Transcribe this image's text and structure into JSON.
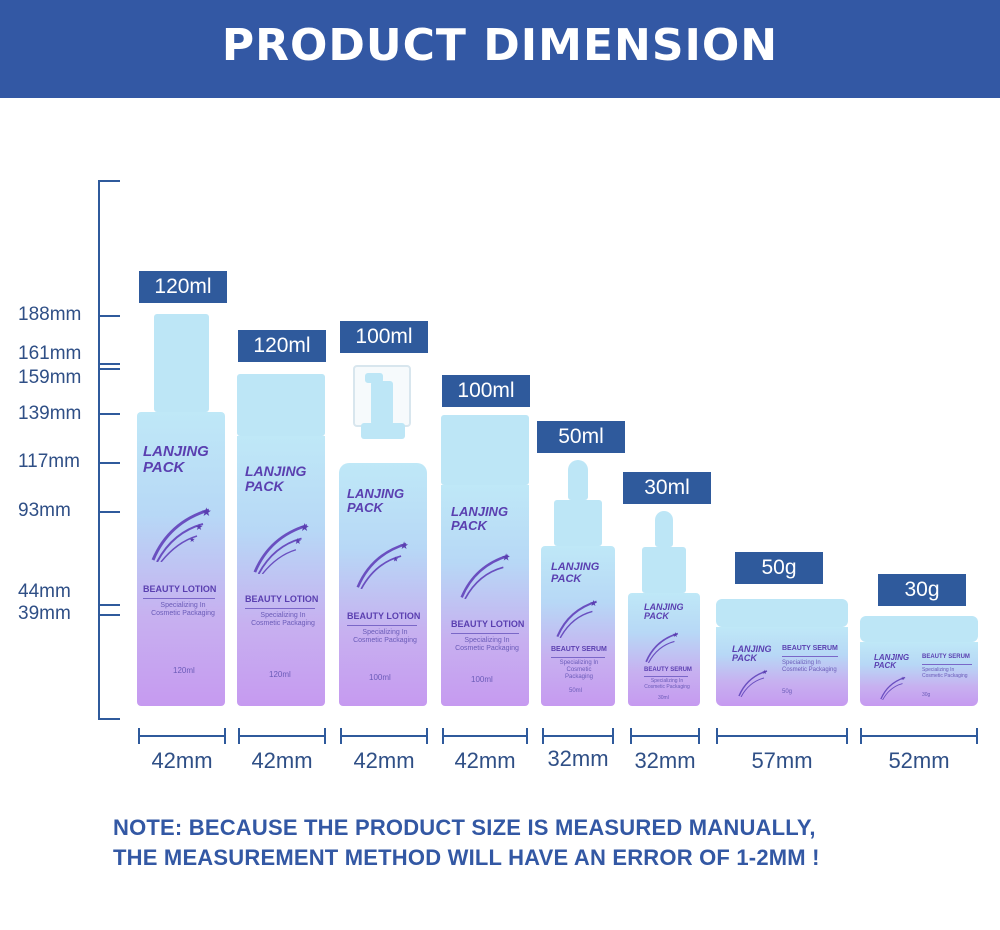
{
  "header": {
    "title": "PRODUCT DIMENSION"
  },
  "height_scale": [
    "188mm",
    "161mm",
    "159mm",
    "139mm",
    "117mm",
    "93mm",
    "44mm",
    "39mm"
  ],
  "products": [
    {
      "volume": "120ml",
      "width": "42mm",
      "brand": "LANJING PACK",
      "type": "BEAUTY LOTION",
      "sub": "Specializing In Cosmetic Packaging",
      "vol_print": "120ml"
    },
    {
      "volume": "120ml",
      "width": "42mm",
      "brand": "LANJING PACK",
      "type": "BEAUTY LOTION",
      "sub": "Specializing In Cosmetic Packaging",
      "vol_print": "120ml"
    },
    {
      "volume": "100ml",
      "width": "42mm",
      "brand": "LANJING PACK",
      "type": "BEAUTY LOTION",
      "sub": "Specializing In Cosmetic Packaging",
      "vol_print": "100ml"
    },
    {
      "volume": "100ml",
      "width": "42mm",
      "brand": "LANJING PACK",
      "type": "BEAUTY LOTION",
      "sub": "Specializing In Cosmetic Packaging",
      "vol_print": "100ml"
    },
    {
      "volume": "50ml",
      "width": "32mm",
      "brand": "LANJING PACK",
      "type": "BEAUTY SERUM",
      "sub": "Specializing In Cosmetic Packaging",
      "vol_print": "50ml"
    },
    {
      "volume": "30ml",
      "width": "32mm",
      "brand": "LANJING PACK",
      "type": "BEAUTY SERUM",
      "sub": "Specializing In Cosmetic Packaging",
      "vol_print": "30ml"
    },
    {
      "volume": "50g",
      "width": "57mm",
      "brand": "LANJING PACK",
      "type": "BEAUTY SERUM",
      "sub": "Specializing In Cosmetic Packaging",
      "vol_print": "50g"
    },
    {
      "volume": "30g",
      "width": "52mm",
      "brand": "LANJING PACK",
      "type": "BEAUTY SERUM",
      "sub": "Specializing In Cosmetic Packaging",
      "vol_print": "30g"
    }
  ],
  "note": {
    "line1": "NOTE:  BECAUSE THE PRODUCT SIZE IS MEASURED MANUALLY,",
    "line2": "THE MEASUREMENT METHOD WILL HAVE AN ERROR OF 1-2MM  !"
  },
  "colors": {
    "banner": "#3358a4",
    "accent": "#2f5a9c",
    "text": "#2f4f86"
  }
}
